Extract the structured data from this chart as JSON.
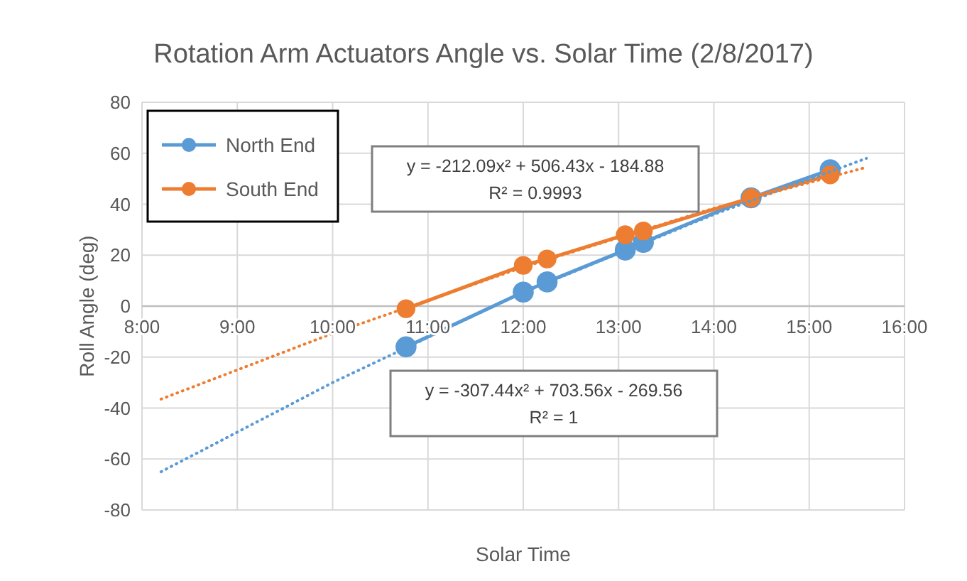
{
  "chart_data": {
    "type": "line",
    "title": "Rotation Arm Actuators Angle vs. Solar Time (2/8/2017)",
    "xlabel": "Solar Time",
    "ylabel": "Roll Angle (deg)",
    "xlim": [
      8,
      16
    ],
    "xticks": [
      {
        "value": 8,
        "label": "8:00"
      },
      {
        "value": 9,
        "label": "9:00"
      },
      {
        "value": 10,
        "label": "10:00"
      },
      {
        "value": 11,
        "label": "11:00"
      },
      {
        "value": 12,
        "label": "12:00"
      },
      {
        "value": 13,
        "label": "13:00"
      },
      {
        "value": 14,
        "label": "14:00"
      },
      {
        "value": 15,
        "label": "15:00"
      },
      {
        "value": 16,
        "label": "16:00"
      }
    ],
    "ylim": [
      -80,
      80
    ],
    "yticks": [
      -80,
      -60,
      -40,
      -20,
      0,
      20,
      40,
      60,
      80
    ],
    "grid": true,
    "legend": "top left",
    "marker": "circle",
    "line_style": "solid",
    "series": [
      {
        "name": "North End",
        "color": "#5b9bd5",
        "x": [
          10.77,
          12.0,
          12.25,
          13.07,
          13.26,
          14.39,
          15.22
        ],
        "values": [
          -16,
          5.5,
          9.5,
          22,
          25,
          42.5,
          53.5
        ]
      },
      {
        "name": "South End",
        "color": "#ed7d31",
        "x": [
          10.77,
          12.0,
          12.25,
          13.07,
          13.26,
          14.39,
          15.22
        ],
        "values": [
          -1,
          16,
          18.5,
          28,
          29.5,
          42.5,
          51.5
        ]
      },
      {
        "type": "line",
        "color": "#5b9bd5",
        "line_style": "dotted",
        "marker": "none",
        "x": [
          8.2,
          10,
          12,
          14,
          15.6
        ],
        "values": [
          -65,
          -30,
          5.4,
          36,
          58
        ]
      },
      {
        "type": "line",
        "color": "#ed7d31",
        "line_style": "dotted",
        "marker": "none",
        "x": [
          8.2,
          10,
          12,
          14,
          15.6
        ],
        "values": [
          -36.5,
          -10.7,
          15.3,
          38.4,
          54.5
        ]
      }
    ],
    "annotations": [
      "y = -212.09x² + 506.43x - 184.88",
      "R² = 0.9993",
      "y = -307.44x² + 703.56x - 269.56",
      "R² = 1"
    ]
  }
}
